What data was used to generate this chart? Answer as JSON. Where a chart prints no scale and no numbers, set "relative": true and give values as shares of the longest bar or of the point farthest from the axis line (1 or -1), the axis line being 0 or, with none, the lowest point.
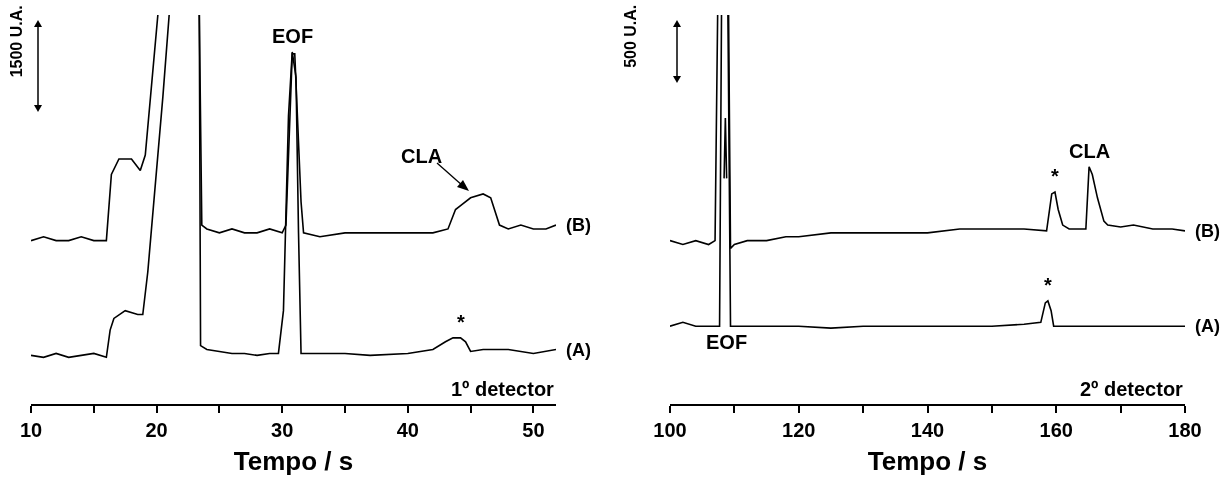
{
  "chart_data": [
    {
      "type": "line",
      "relative": true,
      "xlabel": "Tempo / s",
      "xlim": [
        10,
        51.8
      ],
      "xticks": [
        10,
        {
          "value": 15,
          "label": null
        },
        20,
        {
          "value": 25,
          "label": null
        },
        30,
        {
          "value": 35,
          "label": null
        },
        40,
        {
          "value": 45,
          "label": null
        },
        50
      ],
      "legend": false,
      "grid": false,
      "marker": "none",
      "line_style": "solid",
      "tick_labels": "x",
      "annotations": [
        "1500 U.A.",
        "1º detector",
        "CLA",
        {
          "text": "EOF",
          "x": 30.8,
          "y": 0.905
        },
        {
          "text": "*",
          "x": 44.2,
          "y": 0.17
        }
      ],
      "series": [
        {
          "name": "(B)",
          "color": "#000000",
          "x": [
            10,
            11,
            12,
            13,
            14,
            15,
            16,
            16.4,
            17,
            18,
            18.7,
            19.1,
            20.1,
            21.8,
            23.4,
            23.6,
            24,
            25,
            26,
            27,
            28,
            29,
            30,
            30.3,
            30.8,
            31.0,
            31.5,
            31.7,
            33,
            35,
            37,
            40,
            42,
            43.2,
            43.8,
            44.2,
            45,
            46,
            46.6,
            47.3,
            48,
            49,
            50,
            51,
            51.8
          ],
          "values": [
            0.42,
            0.43,
            0.42,
            0.42,
            0.43,
            0.42,
            0.42,
            0.59,
            0.63,
            0.63,
            0.6,
            0.64,
            1,
            null,
            1,
            0.46,
            0.45,
            0.44,
            0.45,
            0.44,
            0.44,
            0.45,
            0.44,
            0.46,
            0.9,
            0.9,
            0.52,
            0.44,
            0.43,
            0.44,
            0.44,
            0.44,
            0.44,
            0.45,
            0.5,
            0.51,
            0.53,
            0.54,
            0.53,
            0.46,
            0.45,
            0.46,
            0.45,
            0.45,
            0.46
          ]
        },
        {
          "name": "(A)",
          "color": "#000000",
          "x": [
            10,
            11,
            12,
            13,
            14,
            15,
            16,
            16.3,
            16.6,
            17.5,
            18.5,
            18.9,
            19.3,
            20.5,
            21.0,
            22.2,
            23.4,
            23.5,
            24,
            25,
            26,
            27,
            28,
            29,
            29.7,
            30.1,
            30.5,
            30.8,
            31.1,
            31.3,
            31.5,
            33,
            35,
            37,
            40,
            42,
            43,
            43.6,
            44.2,
            44.6,
            45,
            46,
            48,
            50,
            51.8
          ],
          "values": [
            0.125,
            0.12,
            0.13,
            0.12,
            0.125,
            0.13,
            0.12,
            0.19,
            0.22,
            0.24,
            0.23,
            0.23,
            0.34,
            0.79,
            1,
            null,
            1,
            0.15,
            0.14,
            0.135,
            0.13,
            0.13,
            0.125,
            0.13,
            0.13,
            0.24,
            0.74,
            0.905,
            0.84,
            0.44,
            0.13,
            0.13,
            0.13,
            0.125,
            0.13,
            0.14,
            0.16,
            0.17,
            0.17,
            0.16,
            0.135,
            0.14,
            0.14,
            0.13,
            0.14
          ]
        }
      ]
    },
    {
      "type": "line",
      "relative": true,
      "xlabel": "Tempo / s",
      "xlim": [
        100,
        180
      ],
      "xticks": [
        100,
        {
          "value": 110,
          "label": null
        },
        120,
        {
          "value": 130,
          "label": null
        },
        140,
        {
          "value": 150,
          "label": null
        },
        160,
        {
          "value": 170,
          "label": null
        },
        180
      ],
      "legend": false,
      "grid": false,
      "marker": "none",
      "line_style": "solid",
      "tick_labels": "x",
      "annotations": [
        "500 U.A.",
        "2º detector",
        "EOF",
        {
          "text": "CLA",
          "x": 165.1,
          "y": 0.61
        },
        {
          "text": "*",
          "x": 159.8,
          "y": 0.545
        },
        {
          "text": "*",
          "x": 158.7,
          "y": 0.265
        }
      ],
      "series": [
        {
          "name": "(B)",
          "color": "#000000",
          "x": [
            100,
            102,
            104,
            106,
            107,
            107.4,
            107.9,
            108.4,
            108.6,
            108.8,
            108.95,
            109.1,
            109.4,
            110,
            112,
            115,
            118,
            120,
            125,
            130,
            135,
            140,
            145,
            150,
            155,
            158.5,
            159.3,
            159.8,
            160.3,
            161,
            162,
            163,
            164.6,
            165.1,
            165.6,
            166.4,
            167.4,
            168,
            170,
            172,
            175,
            178,
            180
          ],
          "values": [
            0.42,
            0.41,
            0.42,
            0.41,
            0.42,
            1,
            null,
            0.58,
            0.735,
            0.58,
            null,
            1,
            0.4,
            0.41,
            0.42,
            0.42,
            0.43,
            0.43,
            0.44,
            0.44,
            0.44,
            0.44,
            0.45,
            0.45,
            0.45,
            0.445,
            0.54,
            0.545,
            0.5,
            0.46,
            0.45,
            0.45,
            0.45,
            0.61,
            0.59,
            0.53,
            0.47,
            0.46,
            0.455,
            0.46,
            0.45,
            0.45,
            0.445
          ]
        },
        {
          "name": "(A)",
          "color": "#000000",
          "x": [
            100,
            102,
            104,
            106,
            107.7,
            108.0,
            108.5,
            109.0,
            109.4,
            110,
            115,
            120,
            125,
            130,
            135,
            140,
            145,
            150,
            155,
            157.6,
            158.3,
            158.7,
            159.2,
            159.6,
            162,
            165,
            170,
            175,
            180
          ],
          "values": [
            0.2,
            0.21,
            0.2,
            0.2,
            0.2,
            1,
            null,
            1,
            0.2,
            0.2,
            0.2,
            0.2,
            0.195,
            0.2,
            0.2,
            0.2,
            0.2,
            0.2,
            0.205,
            0.21,
            0.26,
            0.265,
            0.24,
            0.2,
            0.2,
            0.2,
            0.2,
            0.2,
            0.2
          ]
        }
      ]
    }
  ]
}
